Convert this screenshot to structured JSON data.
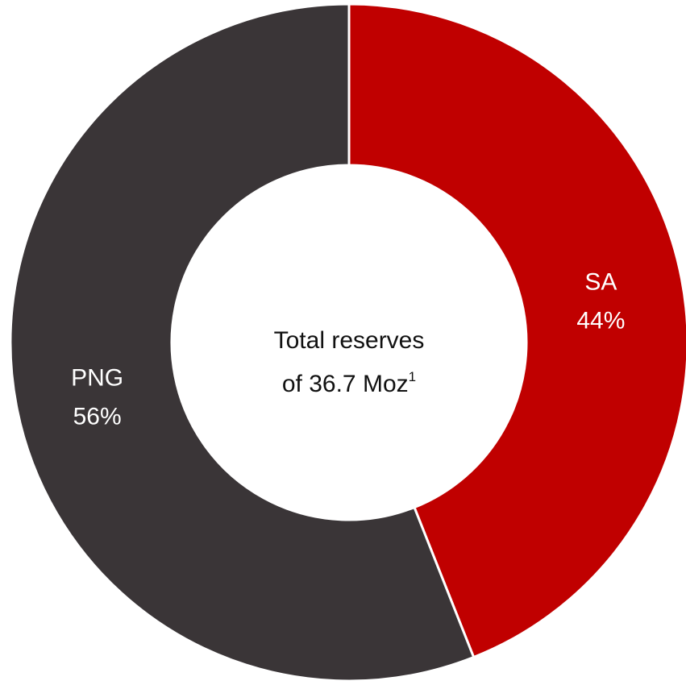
{
  "chart_data": {
    "type": "pie",
    "donut": true,
    "slices": [
      {
        "label": "SA",
        "value": 44,
        "value_label": "44%",
        "color": "#c00000"
      },
      {
        "label": "PNG",
        "value": 56,
        "value_label": "56%",
        "color": "#3a3537"
      }
    ],
    "center_text": {
      "line1": "Total reserves",
      "line2": "of 36.7 Moz",
      "footnote_marker": "1"
    },
    "separator_color": "#ffffff"
  }
}
